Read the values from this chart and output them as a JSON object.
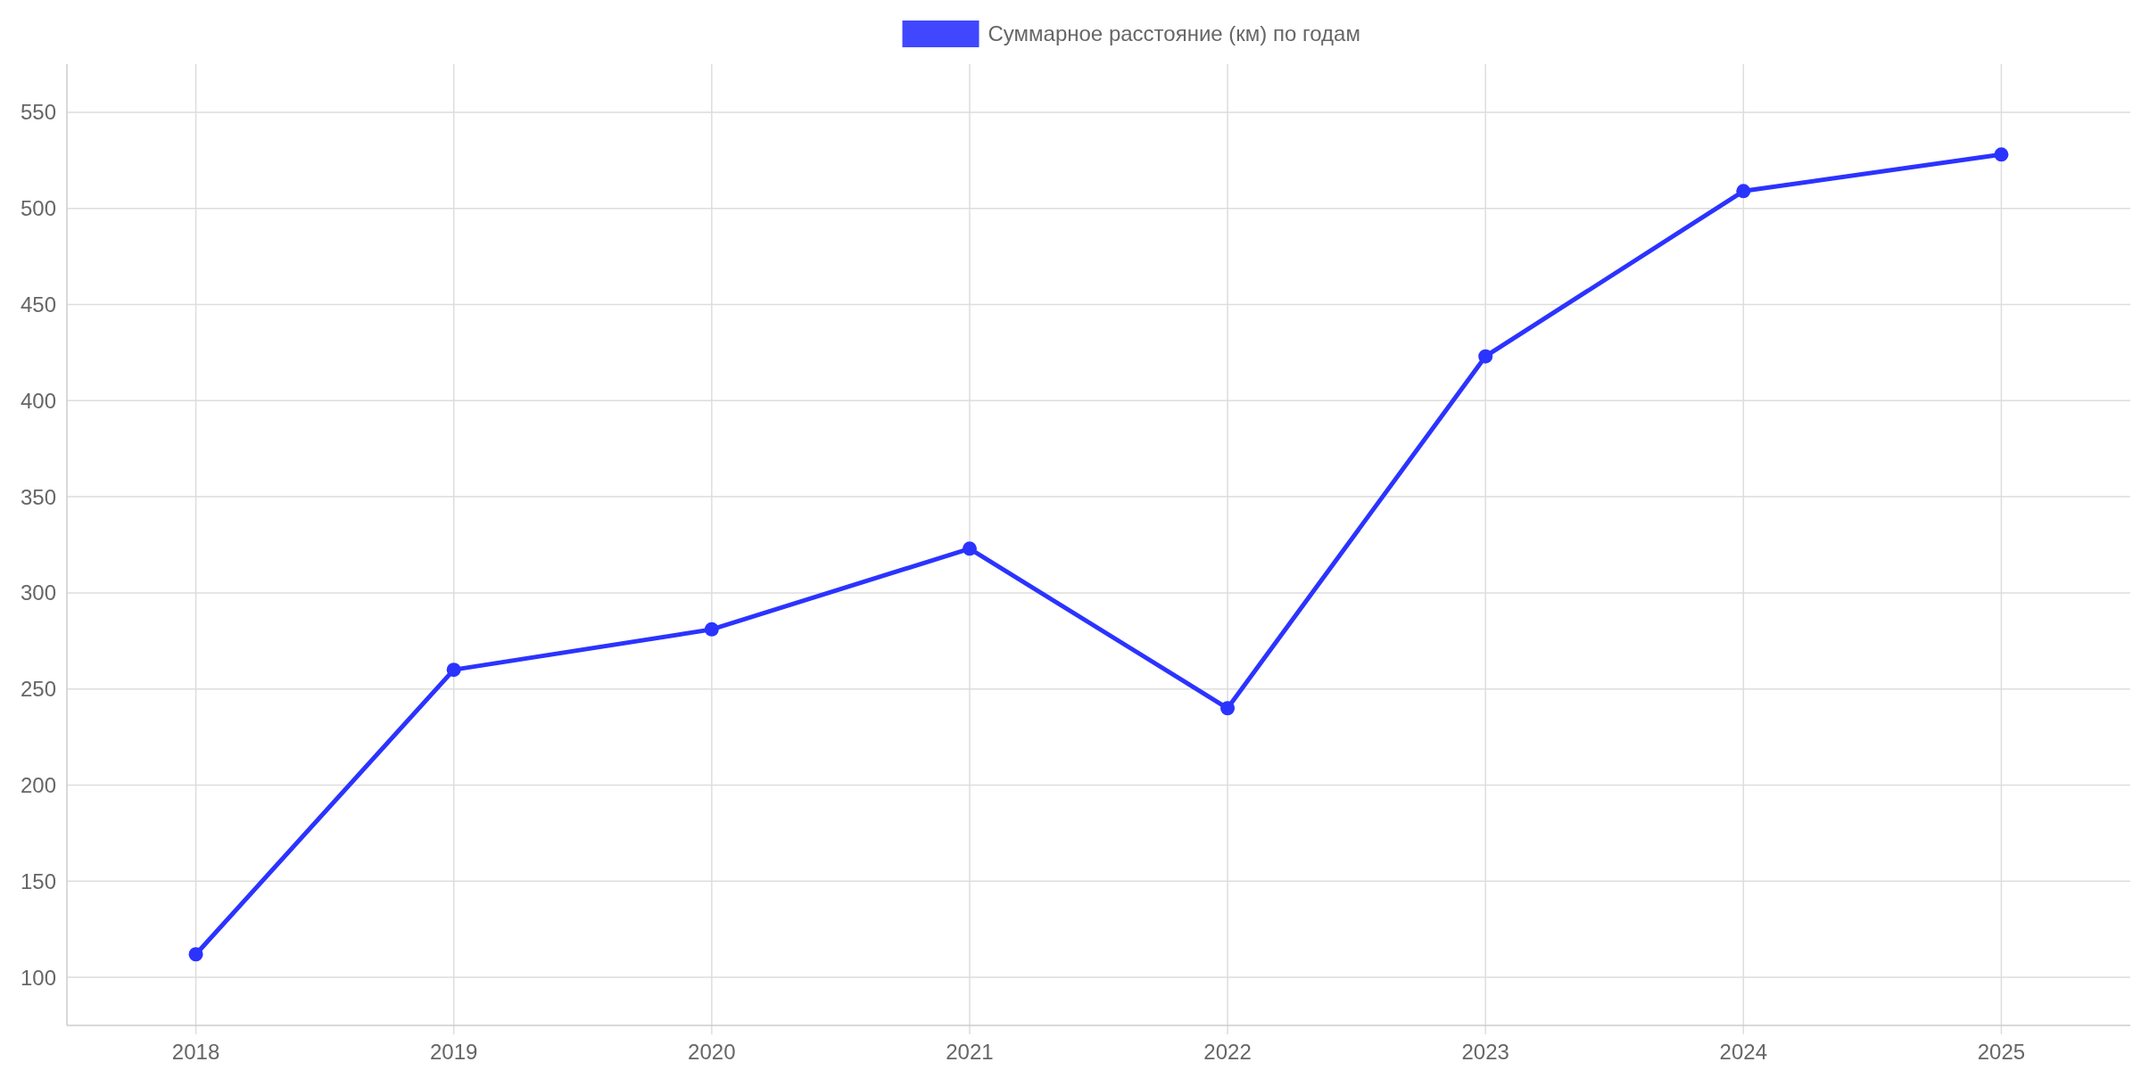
{
  "chart_data": {
    "type": "line",
    "categories": [
      "2018",
      "2019",
      "2020",
      "2021",
      "2022",
      "2023",
      "2024",
      "2025"
    ],
    "series": [
      {
        "name": "Суммарное расстояние (км) по годам",
        "color": "#2b33ff",
        "values": [
          112,
          260,
          281,
          323,
          240,
          423,
          509,
          528
        ]
      }
    ],
    "ylim": [
      75,
      575
    ],
    "yticks": [
      100,
      150,
      200,
      250,
      300,
      350,
      400,
      450,
      500,
      550
    ],
    "grid": true,
    "legend": "top",
    "marker": "circle",
    "line_style": "solid"
  }
}
